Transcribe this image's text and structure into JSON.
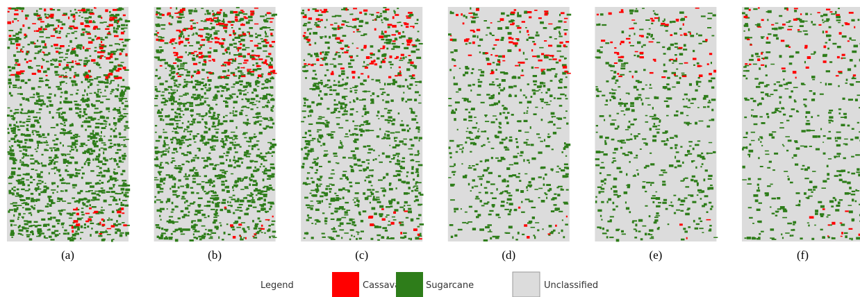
{
  "panels": [
    {
      "label": "(a)"
    },
    {
      "label": "(b)"
    },
    {
      "label": "(c)"
    },
    {
      "label": "(d)"
    },
    {
      "label": "(e)"
    },
    {
      "label": "(f)"
    }
  ],
  "legend": {
    "title": "Legend",
    "items": [
      {
        "label": "Cassava",
        "color": "#ff0000"
      },
      {
        "label": "Sugarcane",
        "color": "#2e7d1a"
      },
      {
        "label": "Unclassified",
        "color": "#dcdcdc"
      }
    ]
  }
}
